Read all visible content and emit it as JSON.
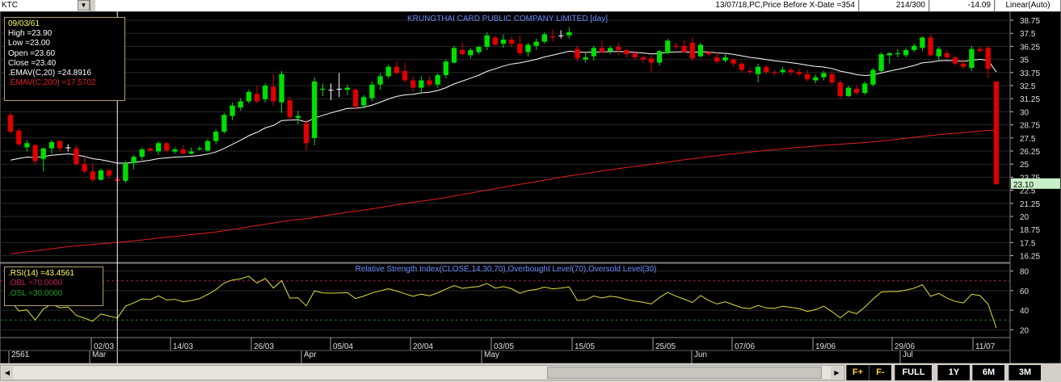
{
  "toolbar": {
    "symbol": "KTC",
    "info": "13/07/18,PC,Price Before X-Date =354",
    "count": "214/300",
    "change": "-14.09",
    "scale": "Linear(Auto)"
  },
  "chart_title": "KRUNGTHAI CARD PUBLIC COMPANY LIMITED [day]",
  "tooltip": {
    "date": "09/03/61",
    "high": "High  =23.90",
    "low": "Low   =23.00",
    "open": "Open  =23.60",
    "close": "Close  =23.40",
    "ema20": ".EMAV(C,20)  =24.8916",
    "ema200": ".EMAV(C,200)  =17.5702"
  },
  "rsi_title": "Relative Strength Index(CLOSE,14,30,70),Overbought Level(70),Oversold Level(30)",
  "rsi_tooltip": {
    "rsi": ".RSI(14)   =43.4561",
    "obl": ".OBL   =70.0000",
    "osl": ".OSL   =30.0000"
  },
  "price_axis_labels": [
    "38.75",
    "37.5",
    "36.25",
    "35",
    "33.75",
    "32.5",
    "31.25",
    "30",
    "28.75",
    "27.5",
    "26.25",
    "25",
    "23.75",
    "22.5",
    "21.25",
    "20",
    "18.75",
    "17.5",
    "16.25"
  ],
  "current_price_label": "23.10",
  "rsi_axis_labels": [
    "80",
    "60",
    "40",
    "20"
  ],
  "date_labels": [
    "2561",
    "Mar",
    "02/03",
    "14/03",
    "26/03",
    "Apr",
    "05/04",
    "20/04",
    "May",
    "03/05",
    "15/05",
    "25/05",
    "Jun",
    "07/06",
    "19/06",
    "29/06",
    "Jul",
    "11/07"
  ],
  "buttons": {
    "zoom_in": "F+",
    "zoom_out": "F-",
    "full": "FULL",
    "y1": "1Y",
    "m6": "6M",
    "m3": "3M"
  },
  "colors": {
    "up": "#00e000",
    "down": "#e00000",
    "ema20": "#ffffff",
    "ema200": "#e02020",
    "rsi": "#e0e040",
    "text_blue": "#6a8cff",
    "tooltip_text": "#ffff60"
  },
  "chart_data": {
    "type": "candlestick",
    "title": "KRUNGTHAI CARD PUBLIC COMPANY LIMITED [day]",
    "ylim": [
      15.6,
      39.6
    ],
    "candles": [
      [
        29.7,
        29.9,
        27.9,
        28.1
      ],
      [
        28.2,
        28.4,
        26.7,
        26.9
      ],
      [
        26.6,
        27.3,
        26.2,
        27.0
      ],
      [
        26.8,
        26.9,
        24.9,
        25.3
      ],
      [
        25.5,
        26.6,
        24.3,
        26.5
      ],
      [
        26.5,
        27.3,
        26.0,
        27.1
      ],
      [
        27.2,
        27.3,
        26.2,
        26.5
      ],
      [
        26.6,
        26.9,
        26.2,
        26.6
      ],
      [
        26.5,
        26.8,
        24.8,
        25.0
      ],
      [
        25.0,
        25.6,
        24.1,
        24.3
      ],
      [
        24.3,
        25.1,
        23.3,
        23.5
      ],
      [
        23.5,
        24.6,
        23.4,
        24.4
      ],
      [
        24.4,
        24.6,
        23.6,
        23.9
      ],
      [
        23.6,
        23.9,
        23.0,
        23.4
      ],
      [
        23.4,
        25.3,
        23.2,
        25.1
      ],
      [
        25.1,
        25.9,
        24.5,
        25.7
      ],
      [
        25.7,
        26.6,
        25.4,
        26.4
      ],
      [
        26.5,
        26.6,
        26.1,
        26.3
      ],
      [
        26.2,
        27.2,
        25.9,
        27.0
      ],
      [
        27.0,
        27.1,
        26.1,
        26.3
      ],
      [
        26.2,
        26.6,
        26.0,
        26.4
      ],
      [
        26.4,
        26.8,
        26.0,
        26.0
      ],
      [
        26.0,
        26.6,
        25.9,
        26.2
      ],
      [
        26.4,
        26.7,
        26.3,
        26.5
      ],
      [
        26.3,
        27.4,
        26.2,
        27.2
      ],
      [
        27.2,
        28.3,
        26.9,
        28.1
      ],
      [
        28.1,
        29.9,
        27.9,
        29.7
      ],
      [
        29.6,
        30.9,
        29.2,
        30.6
      ],
      [
        30.4,
        31.3,
        30.1,
        31.0
      ],
      [
        31.0,
        32.1,
        30.8,
        31.9
      ],
      [
        31.7,
        32.5,
        30.8,
        31.0
      ],
      [
        31.2,
        32.7,
        30.9,
        32.5
      ],
      [
        32.4,
        33.6,
        30.6,
        31.0
      ],
      [
        30.9,
        33.9,
        29.9,
        33.6
      ],
      [
        31.1,
        31.4,
        29.2,
        29.5
      ],
      [
        29.4,
        30.1,
        28.8,
        29.6
      ],
      [
        28.9,
        29.3,
        26.3,
        27.0
      ],
      [
        27.5,
        33.3,
        26.8,
        32.9
      ],
      [
        32.1,
        32.7,
        31.5,
        32.2
      ],
      [
        32.1,
        32.7,
        31.1,
        32.1
      ],
      [
        32.2,
        33.7,
        31.4,
        32.2
      ],
      [
        32.1,
        32.6,
        31.6,
        32.3
      ],
      [
        32.1,
        32.3,
        30.2,
        30.5
      ],
      [
        30.6,
        31.6,
        30.3,
        31.4
      ],
      [
        31.3,
        32.9,
        31.0,
        32.6
      ],
      [
        32.6,
        33.7,
        32.1,
        33.4
      ],
      [
        33.4,
        34.5,
        33.2,
        34.3
      ],
      [
        34.3,
        34.8,
        33.6,
        33.7
      ],
      [
        33.9,
        34.7,
        32.8,
        33.0
      ],
      [
        33.0,
        33.4,
        31.9,
        32.3
      ],
      [
        32.3,
        33.4,
        31.8,
        33.0
      ],
      [
        33.0,
        33.4,
        32.4,
        32.6
      ],
      [
        32.6,
        33.7,
        32.3,
        33.5
      ],
      [
        33.5,
        35.0,
        33.2,
        34.8
      ],
      [
        34.7,
        36.3,
        34.6,
        36.1
      ],
      [
        35.9,
        36.6,
        35.4,
        35.5
      ],
      [
        35.4,
        36.1,
        35.1,
        35.9
      ],
      [
        35.7,
        36.3,
        35.5,
        36.2
      ],
      [
        36.2,
        37.6,
        35.9,
        37.3
      ],
      [
        37.1,
        37.3,
        36.3,
        36.4
      ],
      [
        36.5,
        37.4,
        36.1,
        36.9
      ],
      [
        36.9,
        37.2,
        36.2,
        36.5
      ],
      [
        36.5,
        37.3,
        35.4,
        35.6
      ],
      [
        35.7,
        36.6,
        35.3,
        36.4
      ],
      [
        36.3,
        37.0,
        35.9,
        36.7
      ],
      [
        36.7,
        37.6,
        36.5,
        37.4
      ],
      [
        37.2,
        37.8,
        36.7,
        37.1
      ],
      [
        37.3,
        37.8,
        37.0,
        37.3
      ],
      [
        37.3,
        38.1,
        37.0,
        37.6
      ],
      [
        36.0,
        36.3,
        34.8,
        35.1
      ],
      [
        35.0,
        35.6,
        34.7,
        35.2
      ],
      [
        35.3,
        36.3,
        34.9,
        36.1
      ],
      [
        36.1,
        36.8,
        35.6,
        35.7
      ],
      [
        35.8,
        36.3,
        35.5,
        36.1
      ],
      [
        36.2,
        36.6,
        35.4,
        35.9
      ],
      [
        35.9,
        36.0,
        35.2,
        35.5
      ],
      [
        35.6,
        35.7,
        35.0,
        35.2
      ],
      [
        35.2,
        35.4,
        34.7,
        35.0
      ],
      [
        35.1,
        35.4,
        33.8,
        34.7
      ],
      [
        34.7,
        35.9,
        34.4,
        35.8
      ],
      [
        35.6,
        37.0,
        35.5,
        36.8
      ],
      [
        36.3,
        36.6,
        36.0,
        36.2
      ],
      [
        36.3,
        36.9,
        35.6,
        35.7
      ],
      [
        36.6,
        37.1,
        34.9,
        35.1
      ],
      [
        35.3,
        36.6,
        35.2,
        36.4
      ],
      [
        35.7,
        35.8,
        35.3,
        35.5
      ],
      [
        35.2,
        35.7,
        34.6,
        34.8
      ],
      [
        34.9,
        35.5,
        34.7,
        35.2
      ],
      [
        35.0,
        35.1,
        34.3,
        34.6
      ],
      [
        34.6,
        34.8,
        33.8,
        34.0
      ],
      [
        33.9,
        34.2,
        33.6,
        33.8
      ],
      [
        33.6,
        34.6,
        32.8,
        34.3
      ],
      [
        34.3,
        34.5,
        33.6,
        33.8
      ],
      [
        33.8,
        34.0,
        33.5,
        33.7
      ],
      [
        33.8,
        34.3,
        33.6,
        34.0
      ],
      [
        34.0,
        34.2,
        33.5,
        33.8
      ],
      [
        33.8,
        34.1,
        33.4,
        33.6
      ],
      [
        33.6,
        34.0,
        32.9,
        33.1
      ],
      [
        33.0,
        33.6,
        32.7,
        33.3
      ],
      [
        33.3,
        33.9,
        33.0,
        33.7
      ],
      [
        33.6,
        33.9,
        32.6,
        32.8
      ],
      [
        32.8,
        33.0,
        31.3,
        31.5
      ],
      [
        31.5,
        32.5,
        31.4,
        32.3
      ],
      [
        32.2,
        32.5,
        31.6,
        31.8
      ],
      [
        31.8,
        32.9,
        31.6,
        32.7
      ],
      [
        32.6,
        34.2,
        32.4,
        34.0
      ],
      [
        33.9,
        35.7,
        33.8,
        35.5
      ],
      [
        35.4,
        35.7,
        34.6,
        35.6
      ],
      [
        35.5,
        36.0,
        35.2,
        35.6
      ],
      [
        35.4,
        36.1,
        35.2,
        35.9
      ],
      [
        35.9,
        36.5,
        35.7,
        36.3
      ],
      [
        36.1,
        37.2,
        35.8,
        37.1
      ],
      [
        37.1,
        37.4,
        35.3,
        35.4
      ],
      [
        35.3,
        36.2,
        34.9,
        36.0
      ],
      [
        35.6,
        35.9,
        35.0,
        35.2
      ],
      [
        35.2,
        35.4,
        34.4,
        34.6
      ],
      [
        34.6,
        35.0,
        34.1,
        34.3
      ],
      [
        34.2,
        36.3,
        33.9,
        36.0
      ],
      [
        36.0,
        36.2,
        35.7,
        35.8
      ],
      [
        36.1,
        36.3,
        33.2,
        34.1
      ],
      [
        32.9,
        32.9,
        23.0,
        23.1
      ]
    ],
    "series": [
      {
        "name": ".EMAV(C,20)",
        "values": []
      },
      {
        "name": ".EMAV(C,200)",
        "values": []
      },
      {
        "name": ".RSI(14)",
        "values": []
      }
    ],
    "rsi_ylim": [
      12,
      88
    ],
    "rsi_levels": [
      70,
      30
    ]
  }
}
